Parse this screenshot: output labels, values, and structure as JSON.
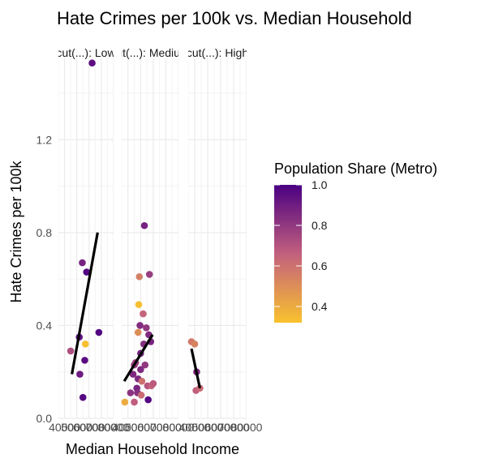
{
  "chart_data": {
    "type": "scatter",
    "title": "Hate Crimes per 100k vs. Median Household",
    "xlabel": "Median Household Income",
    "ylabel": "Hate Crimes per 100k",
    "ylim": [
      0,
      1.55
    ],
    "y_ticks": [
      0.0,
      0.4,
      0.8,
      1.2
    ],
    "y_tick_labels": [
      "0.0",
      "0.4",
      "0.8",
      "1.2"
    ],
    "xlim": [
      35000,
      80000
    ],
    "x_ticks": [
      40000,
      50000,
      60000,
      70000,
      80000
    ],
    "grid": true,
    "facets": [
      {
        "label": "cut(...): Low",
        "x_tick_labels": [
          "40000",
          "50000",
          "60000",
          "70000",
          "80000"
        ],
        "points": [
          {
            "x": 45000,
            "y": 0.29,
            "share": 0.72
          },
          {
            "x": 52000,
            "y": 0.35,
            "share": 0.95
          },
          {
            "x": 52500,
            "y": 0.19,
            "share": 0.9
          },
          {
            "x": 54500,
            "y": 0.67,
            "share": 0.88
          },
          {
            "x": 55000,
            "y": 0.09,
            "share": 0.97
          },
          {
            "x": 56500,
            "y": 0.25,
            "share": 0.96
          },
          {
            "x": 57000,
            "y": 0.32,
            "share": 0.33
          },
          {
            "x": 58000,
            "y": 0.63,
            "share": 0.98
          },
          {
            "x": 62500,
            "y": 1.53,
            "share": 0.95
          },
          {
            "x": 68000,
            "y": 0.37,
            "share": 0.98
          }
        ],
        "fit": [
          [
            46000,
            0.19
          ],
          [
            67000,
            0.8
          ]
        ]
      },
      {
        "label": "cut(...): Medium",
        "x_tick_labels": [
          "40000",
          "50000",
          "60000",
          "70000",
          "80000"
        ],
        "points": [
          {
            "x": 37500,
            "y": 0.07,
            "share": 0.4
          },
          {
            "x": 42000,
            "y": 0.11,
            "share": 0.82
          },
          {
            "x": 45000,
            "y": 0.07,
            "share": 0.67
          },
          {
            "x": 44000,
            "y": 0.19,
            "share": 0.85
          },
          {
            "x": 45000,
            "y": 0.23,
            "share": 0.78
          },
          {
            "x": 46000,
            "y": 0.24,
            "share": 0.77
          },
          {
            "x": 47000,
            "y": 0.13,
            "share": 0.87
          },
          {
            "x": 47500,
            "y": 0.11,
            "share": 0.83
          },
          {
            "x": 48000,
            "y": 0.17,
            "share": 0.85
          },
          {
            "x": 48000,
            "y": 0.37,
            "share": 0.5
          },
          {
            "x": 48500,
            "y": 0.49,
            "share": 0.33
          },
          {
            "x": 49000,
            "y": 0.61,
            "share": 0.55
          },
          {
            "x": 49500,
            "y": 0.4,
            "share": 0.84
          },
          {
            "x": 50000,
            "y": 0.28,
            "share": 0.88
          },
          {
            "x": 50000,
            "y": 0.21,
            "share": 0.85
          },
          {
            "x": 50500,
            "y": 0.1,
            "share": 0.62
          },
          {
            "x": 51000,
            "y": 0.16,
            "share": 0.6
          },
          {
            "x": 52000,
            "y": 0.45,
            "share": 0.65
          },
          {
            "x": 52500,
            "y": 0.32,
            "share": 0.83
          },
          {
            "x": 53000,
            "y": 0.83,
            "share": 0.88
          },
          {
            "x": 53500,
            "y": 0.23,
            "share": 0.8
          },
          {
            "x": 54500,
            "y": 0.39,
            "share": 0.8
          },
          {
            "x": 55500,
            "y": 0.14,
            "share": 0.7
          },
          {
            "x": 56000,
            "y": 0.08,
            "share": 0.97
          },
          {
            "x": 56500,
            "y": 0.36,
            "share": 0.85
          },
          {
            "x": 57000,
            "y": 0.62,
            "share": 0.78
          },
          {
            "x": 58000,
            "y": 0.33,
            "share": 0.87
          },
          {
            "x": 58500,
            "y": 0.14,
            "share": 0.65
          },
          {
            "x": 60000,
            "y": 0.15,
            "share": 0.68
          }
        ],
        "fit": [
          [
            37000,
            0.16
          ],
          [
            59500,
            0.36
          ]
        ]
      },
      {
        "label": "cut(...): High",
        "x_tick_labels": [
          "40000",
          "50000",
          "60000",
          "70000",
          "80000"
        ],
        "points": [
          {
            "x": 37500,
            "y": 0.33,
            "share": 0.57
          },
          {
            "x": 40000,
            "y": 0.32,
            "share": 0.54
          },
          {
            "x": 41500,
            "y": 0.2,
            "share": 0.85
          },
          {
            "x": 41000,
            "y": 0.12,
            "share": 0.66
          },
          {
            "x": 44000,
            "y": 0.13,
            "share": 0.62
          }
        ],
        "fit": [
          [
            37500,
            0.3
          ],
          [
            44000,
            0.13
          ]
        ]
      }
    ],
    "color_scale": {
      "title": "Population Share (Metro)",
      "range": [
        0.32,
        1.0
      ],
      "breaks": [
        1.0,
        0.8,
        0.6,
        0.4
      ],
      "break_labels": [
        "1.0",
        "0.8",
        "0.6",
        "0.4"
      ],
      "low_color": "#F9C22E",
      "mid_color": "#C2607E",
      "high_color": "#4B0082"
    },
    "colors": {
      "grid_major": "#ebebeb",
      "grid_minor": "#f3f3f3",
      "fit_line": "#000000"
    }
  }
}
